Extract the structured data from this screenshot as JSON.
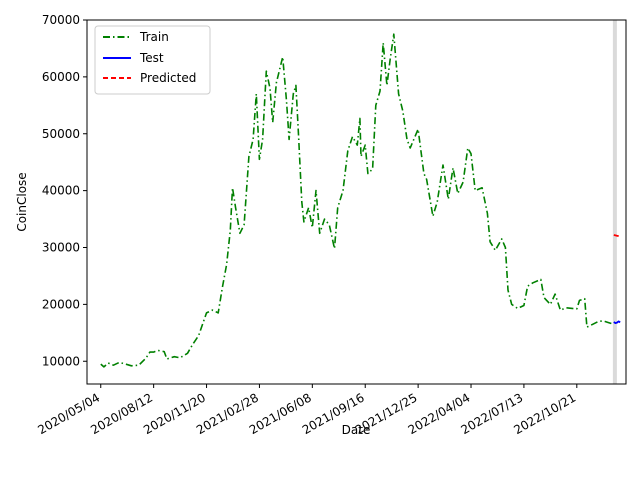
{
  "chart_data": {
    "type": "line",
    "xlabel": "Date",
    "ylabel": "CoinClose",
    "x_ticks": [
      "2020/05/04",
      "2020/08/12",
      "2020/11/20",
      "2021/02/28",
      "2021/06/08",
      "2021/09/16",
      "2021/12/25",
      "2022/04/04",
      "2022/07/13",
      "2022/10/21"
    ],
    "y_ticks": [
      10000,
      20000,
      30000,
      40000,
      50000,
      60000,
      70000
    ],
    "xlim": [
      "2020/04/08",
      "2023/01/22"
    ],
    "ylim": [
      6000,
      70000
    ],
    "grid": false,
    "legend_position": "top-left",
    "shaded_band": {
      "x": "2023/01/01",
      "color": "#d3d3d3"
    },
    "series": [
      {
        "name": "Train",
        "color": "#008000",
        "style": "dashdot",
        "points": [
          [
            "2020/05/04",
            9500
          ],
          [
            "2020/05/10",
            9000
          ],
          [
            "2020/05/18",
            9700
          ],
          [
            "2020/05/28",
            9300
          ],
          [
            "2020/06/08",
            9800
          ],
          [
            "2020/06/20",
            9500
          ],
          [
            "2020/07/01",
            9200
          ],
          [
            "2020/07/15",
            9300
          ],
          [
            "2020/07/28",
            10500
          ],
          [
            "2020/08/05",
            11600
          ],
          [
            "2020/08/12",
            11600
          ],
          [
            "2020/08/20",
            11900
          ],
          [
            "2020/09/01",
            11700
          ],
          [
            "2020/09/06",
            10400
          ],
          [
            "2020/09/20",
            10800
          ],
          [
            "2020/10/01",
            10600
          ],
          [
            "2020/10/15",
            11400
          ],
          [
            "2020/10/25",
            13000
          ],
          [
            "2020/11/05",
            14500
          ],
          [
            "2020/11/20",
            18500
          ],
          [
            "2020/12/01",
            19000
          ],
          [
            "2020/12/12",
            18500
          ],
          [
            "2020/12/20",
            23000
          ],
          [
            "2020/12/28",
            27000
          ],
          [
            "2021/01/04",
            33000
          ],
          [
            "2021/01/08",
            40500
          ],
          [
            "2021/01/14",
            37000
          ],
          [
            "2021/01/22",
            32500
          ],
          [
            "2021/01/30",
            34000
          ],
          [
            "2021/02/08",
            46000
          ],
          [
            "2021/02/16",
            49000
          ],
          [
            "2021/02/22",
            57000
          ],
          [
            "2021/02/28",
            45500
          ],
          [
            "2021/03/06",
            49000
          ],
          [
            "2021/03/13",
            61000
          ],
          [
            "2021/03/20",
            58000
          ],
          [
            "2021/03/25",
            52000
          ],
          [
            "2021/04/01",
            59000
          ],
          [
            "2021/04/13",
            63500
          ],
          [
            "2021/04/20",
            56000
          ],
          [
            "2021/04/25",
            49000
          ],
          [
            "2021/05/03",
            57000
          ],
          [
            "2021/05/08",
            58500
          ],
          [
            "2021/05/13",
            49500
          ],
          [
            "2021/05/19",
            38000
          ],
          [
            "2021/05/23",
            34500
          ],
          [
            "2021/06/01",
            37000
          ],
          [
            "2021/06/08",
            33500
          ],
          [
            "2021/06/15",
            40000
          ],
          [
            "2021/06/22",
            32500
          ],
          [
            "2021/07/01",
            35000
          ],
          [
            "2021/07/10",
            34000
          ],
          [
            "2021/07/20",
            29800
          ],
          [
            "2021/07/26",
            37000
          ],
          [
            "2021/08/05",
            40000
          ],
          [
            "2021/08/14",
            47000
          ],
          [
            "2021/08/23",
            49500
          ],
          [
            "2021/09/01",
            48000
          ],
          [
            "2021/09/06",
            52700
          ],
          [
            "2021/09/08",
            46000
          ],
          [
            "2021/09/16",
            48000
          ],
          [
            "2021/09/21",
            43000
          ],
          [
            "2021/09/30",
            43800
          ],
          [
            "2021/10/06",
            55000
          ],
          [
            "2021/10/14",
            57500
          ],
          [
            "2021/10/20",
            66000
          ],
          [
            "2021/10/27",
            58500
          ],
          [
            "2021/11/02",
            63000
          ],
          [
            "2021/11/09",
            67500
          ],
          [
            "2021/11/18",
            57000
          ],
          [
            "2021/11/26",
            54000
          ],
          [
            "2021/12/04",
            49000
          ],
          [
            "2021/12/10",
            47500
          ],
          [
            "2021/12/25",
            50800
          ],
          [
            "2022/01/05",
            43000
          ],
          [
            "2022/01/10",
            42000
          ],
          [
            "2022/01/22",
            35500
          ],
          [
            "2022/01/30",
            38000
          ],
          [
            "2022/02/10",
            44500
          ],
          [
            "2022/02/20",
            38500
          ],
          [
            "2022/03/01",
            44000
          ],
          [
            "2022/03/10",
            39500
          ],
          [
            "2022/03/20",
            41500
          ],
          [
            "2022/03/29",
            47500
          ],
          [
            "2022/04/04",
            46500
          ],
          [
            "2022/04/12",
            40000
          ],
          [
            "2022/04/25",
            40500
          ],
          [
            "2022/05/05",
            36000
          ],
          [
            "2022/05/10",
            31000
          ],
          [
            "2022/05/20",
            29500
          ],
          [
            "2022/06/01",
            31500
          ],
          [
            "2022/06/08",
            30000
          ],
          [
            "2022/06/13",
            22500
          ],
          [
            "2022/06/20",
            20000
          ],
          [
            "2022/07/01",
            19300
          ],
          [
            "2022/07/13",
            19800
          ],
          [
            "2022/07/20",
            23200
          ],
          [
            "2022/07/30",
            23800
          ],
          [
            "2022/08/14",
            24400
          ],
          [
            "2022/08/20",
            21200
          ],
          [
            "2022/09/01",
            20000
          ],
          [
            "2022/09/10",
            21800
          ],
          [
            "2022/09/20",
            19000
          ],
          [
            "2022/10/01",
            19400
          ],
          [
            "2022/10/21",
            19200
          ],
          [
            "2022/10/26",
            20700
          ],
          [
            "2022/11/05",
            21000
          ],
          [
            "2022/11/09",
            16000
          ],
          [
            "2022/11/20",
            16500
          ],
          [
            "2022/12/01",
            17000
          ],
          [
            "2022/12/10",
            17100
          ],
          [
            "2022/12/20",
            16800
          ],
          [
            "2022/12/30",
            16500
          ]
        ]
      },
      {
        "name": "Test",
        "color": "#0000ff",
        "style": "solid",
        "points": [
          [
            "2022/12/30",
            16900
          ],
          [
            "2023/01/02",
            16700
          ],
          [
            "2023/01/05",
            16800
          ],
          [
            "2023/01/08",
            17000
          ],
          [
            "2023/01/11",
            16850
          ]
        ]
      },
      {
        "name": "Predicted",
        "color": "#ff0000",
        "style": "dashed",
        "points": [
          [
            "2022/12/30",
            32200
          ],
          [
            "2023/01/05",
            32050
          ],
          [
            "2023/01/11",
            32000
          ]
        ]
      }
    ]
  }
}
